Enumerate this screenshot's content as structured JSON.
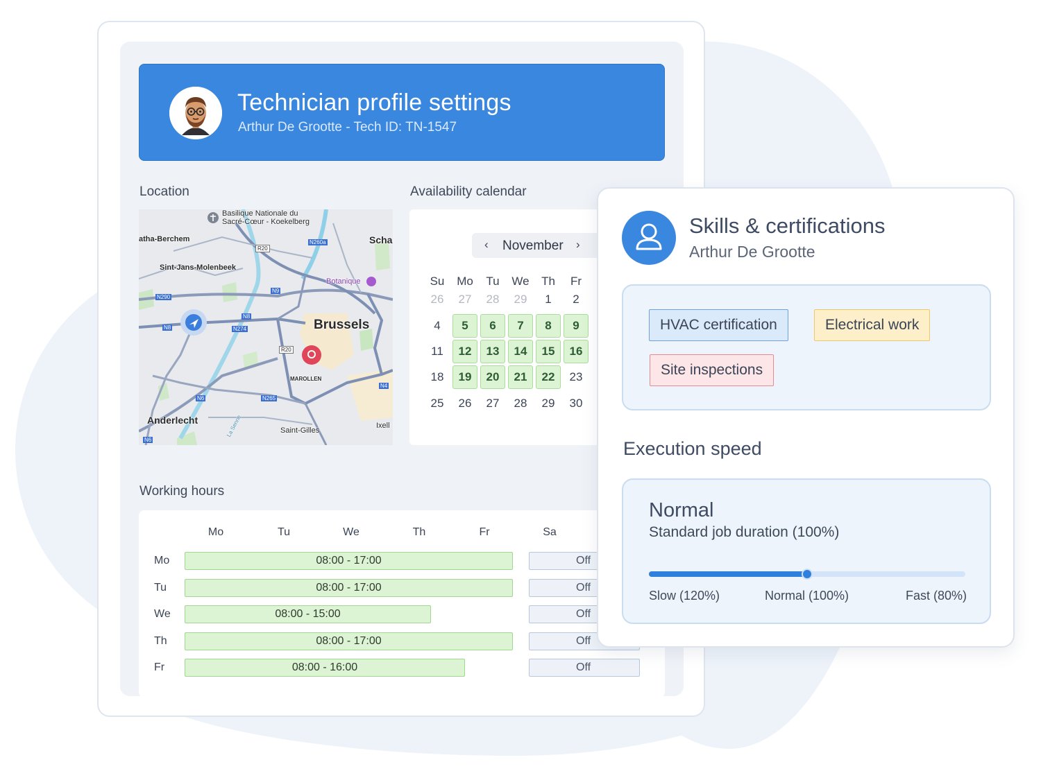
{
  "header": {
    "title": "Technician profile settings",
    "subtitle": "Arthur De Grootte - Tech ID: TN-1547"
  },
  "location": {
    "label": "Location",
    "map_labels": {
      "basilique": "Basilique Nationale du Sacré-Cœur - Koekelberg",
      "ganshoren": "atha-Berchem",
      "molenbeek": "Sint-Jans-Molenbeek",
      "schaerbeek": "Scha",
      "botanique": "Botanique",
      "brussels": "Brussels",
      "marollen": "MAROLLEN",
      "anderlecht": "Anderlecht",
      "saint_gilles": "Saint-Gilles",
      "ixelles": "Ixell",
      "zenne": "La Senne",
      "r20": "R20",
      "r20b": "R20",
      "n260a": "N260a",
      "n290": "N290",
      "n9": "N9",
      "n8": "N8",
      "n8b": "N8",
      "n274": "N274",
      "n6": "N6",
      "n6b": "N6",
      "n265": "N265",
      "n4": "N4"
    }
  },
  "calendar": {
    "label": "Availability calendar",
    "month": "November",
    "prev_icon": "‹",
    "next_icon": "›",
    "weekdays": [
      "Su",
      "Mo",
      "Tu",
      "We",
      "Th",
      "Fr"
    ],
    "weeks": [
      [
        {
          "d": "26",
          "s": "muted"
        },
        {
          "d": "27",
          "s": "muted"
        },
        {
          "d": "28",
          "s": "muted"
        },
        {
          "d": "29",
          "s": "muted"
        },
        {
          "d": "1",
          "s": "normal"
        },
        {
          "d": "2",
          "s": "normal"
        }
      ],
      [
        {
          "d": "4",
          "s": "normal"
        },
        {
          "d": "5",
          "s": "avail"
        },
        {
          "d": "6",
          "s": "avail"
        },
        {
          "d": "7",
          "s": "avail"
        },
        {
          "d": "8",
          "s": "avail"
        },
        {
          "d": "9",
          "s": "avail"
        }
      ],
      [
        {
          "d": "11",
          "s": "normal"
        },
        {
          "d": "12",
          "s": "avail"
        },
        {
          "d": "13",
          "s": "avail"
        },
        {
          "d": "14",
          "s": "avail"
        },
        {
          "d": "15",
          "s": "avail"
        },
        {
          "d": "16",
          "s": "avail"
        }
      ],
      [
        {
          "d": "18",
          "s": "normal"
        },
        {
          "d": "19",
          "s": "avail"
        },
        {
          "d": "20",
          "s": "avail"
        },
        {
          "d": "21",
          "s": "avail"
        },
        {
          "d": "22",
          "s": "avail"
        },
        {
          "d": "23",
          "s": "normal"
        }
      ],
      [
        {
          "d": "25",
          "s": "normal"
        },
        {
          "d": "26",
          "s": "normal"
        },
        {
          "d": "27",
          "s": "normal"
        },
        {
          "d": "28",
          "s": "normal"
        },
        {
          "d": "29",
          "s": "normal"
        },
        {
          "d": "30",
          "s": "normal"
        }
      ]
    ]
  },
  "working_hours": {
    "label": "Working hours",
    "columns": [
      "Mo",
      "Tu",
      "We",
      "Th",
      "Fr",
      "Sa"
    ],
    "rows": [
      {
        "day": "Mo",
        "hours": "08:00 - 17:00",
        "saturday": "Off"
      },
      {
        "day": "Tu",
        "hours": "08:00 - 17:00",
        "saturday": "Off"
      },
      {
        "day": "We",
        "hours": "08:00 - 15:00",
        "saturday": "Off"
      },
      {
        "day": "Th",
        "hours": "08:00 - 17:00",
        "saturday": "Off"
      },
      {
        "day": "Fr",
        "hours": "08:00 - 16:00",
        "saturday": "Off"
      }
    ]
  },
  "skills": {
    "title": "Skills & certifications",
    "name": "Arthur De Grootte",
    "tags": [
      {
        "label": "HVAC certification",
        "color": "blue"
      },
      {
        "label": "Electrical work",
        "color": "yellow"
      },
      {
        "label": "Site inspections",
        "color": "red"
      }
    ]
  },
  "execution_speed": {
    "label": "Execution speed",
    "value": "Normal",
    "description": "Standard job duration (100%)",
    "slider_level": 0.5,
    "ticks": [
      "Slow (120%)",
      "Normal (100%)",
      "Fast (80%)"
    ]
  },
  "colors": {
    "primary": "#3a87e0",
    "available": "#dcf3d4",
    "tag_blue": "#dbeafb",
    "tag_yellow": "#fcefc9",
    "tag_red": "#fde6e8"
  },
  "icons": {
    "avatar": "technician-avatar-icon",
    "user": "user-icon",
    "navigation": "navigation-arrow-icon",
    "map_pin": "location-pin-icon"
  }
}
